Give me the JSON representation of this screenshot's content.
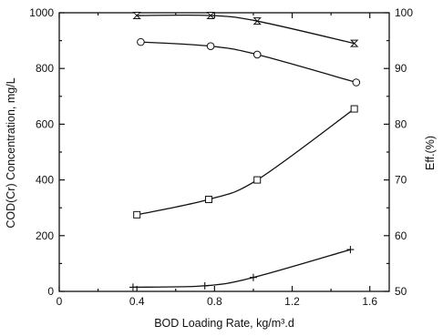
{
  "chart_data": {
    "type": "scatter",
    "xlabel": "BOD Loading Rate, kg/m³.d",
    "ylabel_left": "COD(Cr) Concentration, mg/L",
    "ylabel_right": "Eff.(%)",
    "xlim": [
      0,
      1.7
    ],
    "ylim_left": [
      0,
      1000
    ],
    "ylim_right": [
      50,
      100
    ],
    "x_ticks": [
      "0",
      "0.4",
      "0.8",
      "1.2",
      "1.6"
    ],
    "y_ticks_left": [
      "0",
      "200",
      "400",
      "600",
      "800",
      "1000"
    ],
    "y_ticks_right": [
      "50",
      "60",
      "70",
      "80",
      "90",
      "100"
    ],
    "grid": false,
    "series": [
      {
        "marker": "hourglass",
        "axis": "left",
        "x": [
          0.4,
          0.78,
          1.02,
          1.52
        ],
        "y": [
          990,
          990,
          970,
          890
        ]
      },
      {
        "marker": "circle",
        "axis": "left",
        "x": [
          0.42,
          0.78,
          1.02,
          1.53
        ],
        "y": [
          895,
          880,
          850,
          750
        ]
      },
      {
        "marker": "square",
        "axis": "left",
        "x": [
          0.4,
          0.77,
          1.02,
          1.52
        ],
        "y": [
          275,
          330,
          400,
          655
        ]
      },
      {
        "marker": "plus",
        "axis": "left",
        "x": [
          0.38,
          0.75,
          1.0,
          1.5
        ],
        "y": [
          15,
          20,
          50,
          150
        ]
      }
    ]
  }
}
